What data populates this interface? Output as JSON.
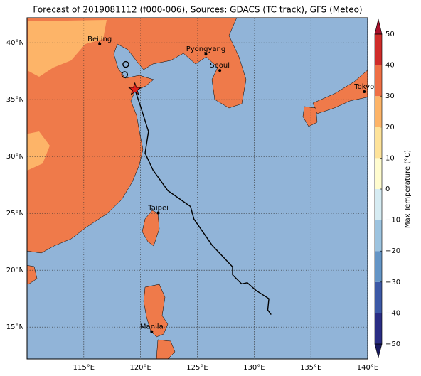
{
  "chart_data": {
    "type": "map",
    "title": "Forecast of 2019081112 (f000-006), Sources: GDACS (TC track), GFS (Meteo)",
    "xlim": [
      110,
      140
    ],
    "ylim": [
      12.2,
      42.2
    ],
    "xticks": [
      {
        "value": 115,
        "label": "115°E"
      },
      {
        "value": 120,
        "label": "120°E"
      },
      {
        "value": 125,
        "label": "125°E"
      },
      {
        "value": 130,
        "label": "130°E"
      },
      {
        "value": 135,
        "label": "135°E"
      },
      {
        "value": 140,
        "label": "140°E"
      }
    ],
    "yticks": [
      {
        "value": 15,
        "label": "15°N"
      },
      {
        "value": 20,
        "label": "20°N"
      },
      {
        "value": 25,
        "label": "25°N"
      },
      {
        "value": 30,
        "label": "30°N"
      },
      {
        "value": 35,
        "label": "35°N"
      },
      {
        "value": 40,
        "label": "40°N"
      }
    ],
    "grid": true,
    "ocean_color": "#91b4d8",
    "cities": [
      {
        "name": "Beijing",
        "lon": 116.4,
        "lat": 39.9
      },
      {
        "name": "Pyongyang",
        "lon": 125.75,
        "lat": 39.0
      },
      {
        "name": "Seoul",
        "lon": 126.98,
        "lat": 37.57
      },
      {
        "name": "Tokyo",
        "lon": 139.7,
        "lat": 35.7
      },
      {
        "name": "Taipei",
        "lon": 121.56,
        "lat": 25.04
      },
      {
        "name": "Manila",
        "lon": 120.98,
        "lat": 14.6
      }
    ],
    "track": {
      "color": "#000000",
      "lon": [
        119.44,
        120.0,
        120.7,
        120.4,
        121.1,
        122.4,
        124.4,
        124.7,
        126.3,
        128.1,
        128.1,
        128.9,
        129.4,
        130.2,
        131.3,
        131.2,
        131.5
      ],
      "lat": [
        36.08,
        34.4,
        32.2,
        30.3,
        28.8,
        27.0,
        25.6,
        24.5,
        22.2,
        20.3,
        19.6,
        18.8,
        18.9,
        18.2,
        17.5,
        16.5,
        16.1
      ]
    },
    "storm_position": {
      "lon": 119.5,
      "lat": 35.9,
      "color": "#e0201b"
    },
    "track_markers": [
      {
        "lon": 118.7,
        "lat": 38.1
      },
      {
        "lon": 118.6,
        "lat": 37.2
      }
    ],
    "colorbar": {
      "label": "Max Temperature (°C)",
      "ticks": [
        {
          "value": -50,
          "label": "−50"
        },
        {
          "value": -40,
          "label": "−40"
        },
        {
          "value": -30,
          "label": "−30"
        },
        {
          "value": -20,
          "label": "−20"
        },
        {
          "value": -10,
          "label": "−10"
        },
        0,
        10,
        20,
        30,
        40,
        50
      ],
      "colors": [
        "#2a2d84",
        "#3c59a6",
        "#6495c6",
        "#9dc4e0",
        "#d6ecf3",
        "#fffccf",
        "#fee39a",
        "#fdb468",
        "#ef6f45",
        "#cf2c2a"
      ],
      "under_color": "#1a1a60",
      "over_color": "#a9112b"
    }
  }
}
